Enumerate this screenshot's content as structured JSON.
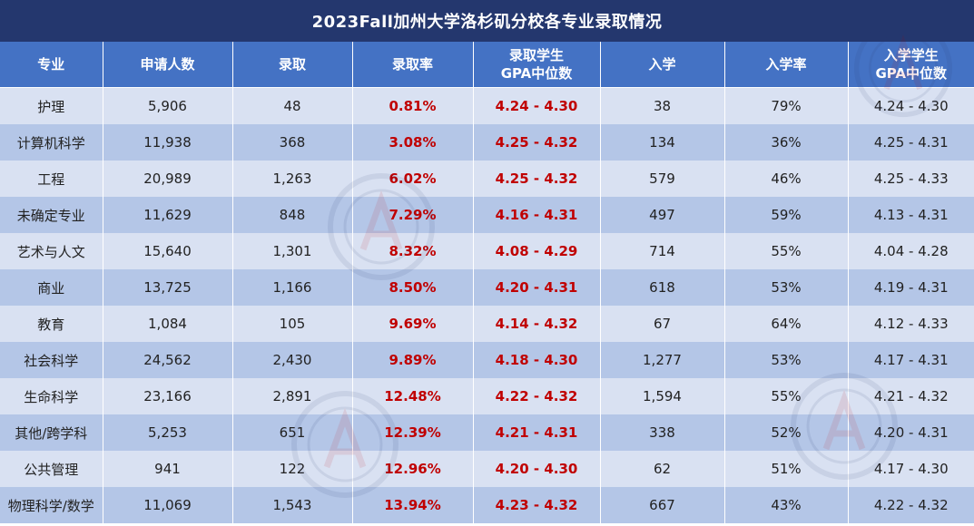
{
  "title": "2023Fall加州大学洛杉矶分校各专业录取情况",
  "headers": [
    {
      "line1": "专业",
      "line2": ""
    },
    {
      "line1": "申请人数",
      "line2": ""
    },
    {
      "line1": "录取",
      "line2": ""
    },
    {
      "line1": "录取率",
      "line2": ""
    },
    {
      "line1": "录取学生",
      "line2": "GPA中位数"
    },
    {
      "line1": "入学",
      "line2": ""
    },
    {
      "line1": "入学率",
      "line2": ""
    },
    {
      "line1": "入学学生",
      "line2": "GPA中位数"
    }
  ],
  "rows": [
    {
      "major": "护理",
      "applicants": "5,906",
      "admitted": "48",
      "admit_rate": "0.81%",
      "admit_gpa": "4.24 - 4.30",
      "enrolled": "38",
      "yield": "79%",
      "enroll_gpa": "4.24 - 4.30"
    },
    {
      "major": "计算机科学",
      "applicants": "11,938",
      "admitted": "368",
      "admit_rate": "3.08%",
      "admit_gpa": "4.25 - 4.32",
      "enrolled": "134",
      "yield": "36%",
      "enroll_gpa": "4.25 - 4.31"
    },
    {
      "major": "工程",
      "applicants": "20,989",
      "admitted": "1,263",
      "admit_rate": "6.02%",
      "admit_gpa": "4.25 - 4.32",
      "enrolled": "579",
      "yield": "46%",
      "enroll_gpa": "4.25 - 4.33"
    },
    {
      "major": "未确定专业",
      "applicants": "11,629",
      "admitted": "848",
      "admit_rate": "7.29%",
      "admit_gpa": "4.16 - 4.31",
      "enrolled": "497",
      "yield": "59%",
      "enroll_gpa": "4.13 - 4.31"
    },
    {
      "major": "艺术与人文",
      "applicants": "15,640",
      "admitted": "1,301",
      "admit_rate": "8.32%",
      "admit_gpa": "4.08 - 4.29",
      "enrolled": "714",
      "yield": "55%",
      "enroll_gpa": "4.04 - 4.28"
    },
    {
      "major": "商业",
      "applicants": "13,725",
      "admitted": "1,166",
      "admit_rate": "8.50%",
      "admit_gpa": "4.20 - 4.31",
      "enrolled": "618",
      "yield": "53%",
      "enroll_gpa": "4.19 - 4.31"
    },
    {
      "major": "教育",
      "applicants": "1,084",
      "admitted": "105",
      "admit_rate": "9.69%",
      "admit_gpa": "4.14 - 4.32",
      "enrolled": "67",
      "yield": "64%",
      "enroll_gpa": "4.12 - 4.33"
    },
    {
      "major": "社会科学",
      "applicants": "24,562",
      "admitted": "2,430",
      "admit_rate": "9.89%",
      "admit_gpa": "4.18 - 4.30",
      "enrolled": "1,277",
      "yield": "53%",
      "enroll_gpa": "4.17 - 4.31"
    },
    {
      "major": "生命科学",
      "applicants": "23,166",
      "admitted": "2,891",
      "admit_rate": "12.48%",
      "admit_gpa": "4.22 - 4.32",
      "enrolled": "1,594",
      "yield": "55%",
      "enroll_gpa": "4.21 - 4.32"
    },
    {
      "major": "其他/跨学科",
      "applicants": "5,253",
      "admitted": "651",
      "admit_rate": "12.39%",
      "admit_gpa": "4.21 - 4.31",
      "enrolled": "338",
      "yield": "52%",
      "enroll_gpa": "4.20 - 4.31"
    },
    {
      "major": "公共管理",
      "applicants": "941",
      "admitted": "122",
      "admit_rate": "12.96%",
      "admit_gpa": "4.20 - 4.30",
      "enrolled": "62",
      "yield": "51%",
      "enroll_gpa": "4.17 - 4.30"
    },
    {
      "major": "物理科学/数学",
      "applicants": "11,069",
      "admitted": "1,543",
      "admit_rate": "13.94%",
      "admit_gpa": "4.23 - 4.32",
      "enrolled": "667",
      "yield": "43%",
      "enroll_gpa": "4.22 - 4.32"
    }
  ],
  "colors": {
    "title_bg": "#24376e",
    "header_bg": "#4472c4",
    "row_light": "#d9e1f2",
    "row_dark": "#b4c6e7",
    "highlight_text": "#c00000"
  }
}
